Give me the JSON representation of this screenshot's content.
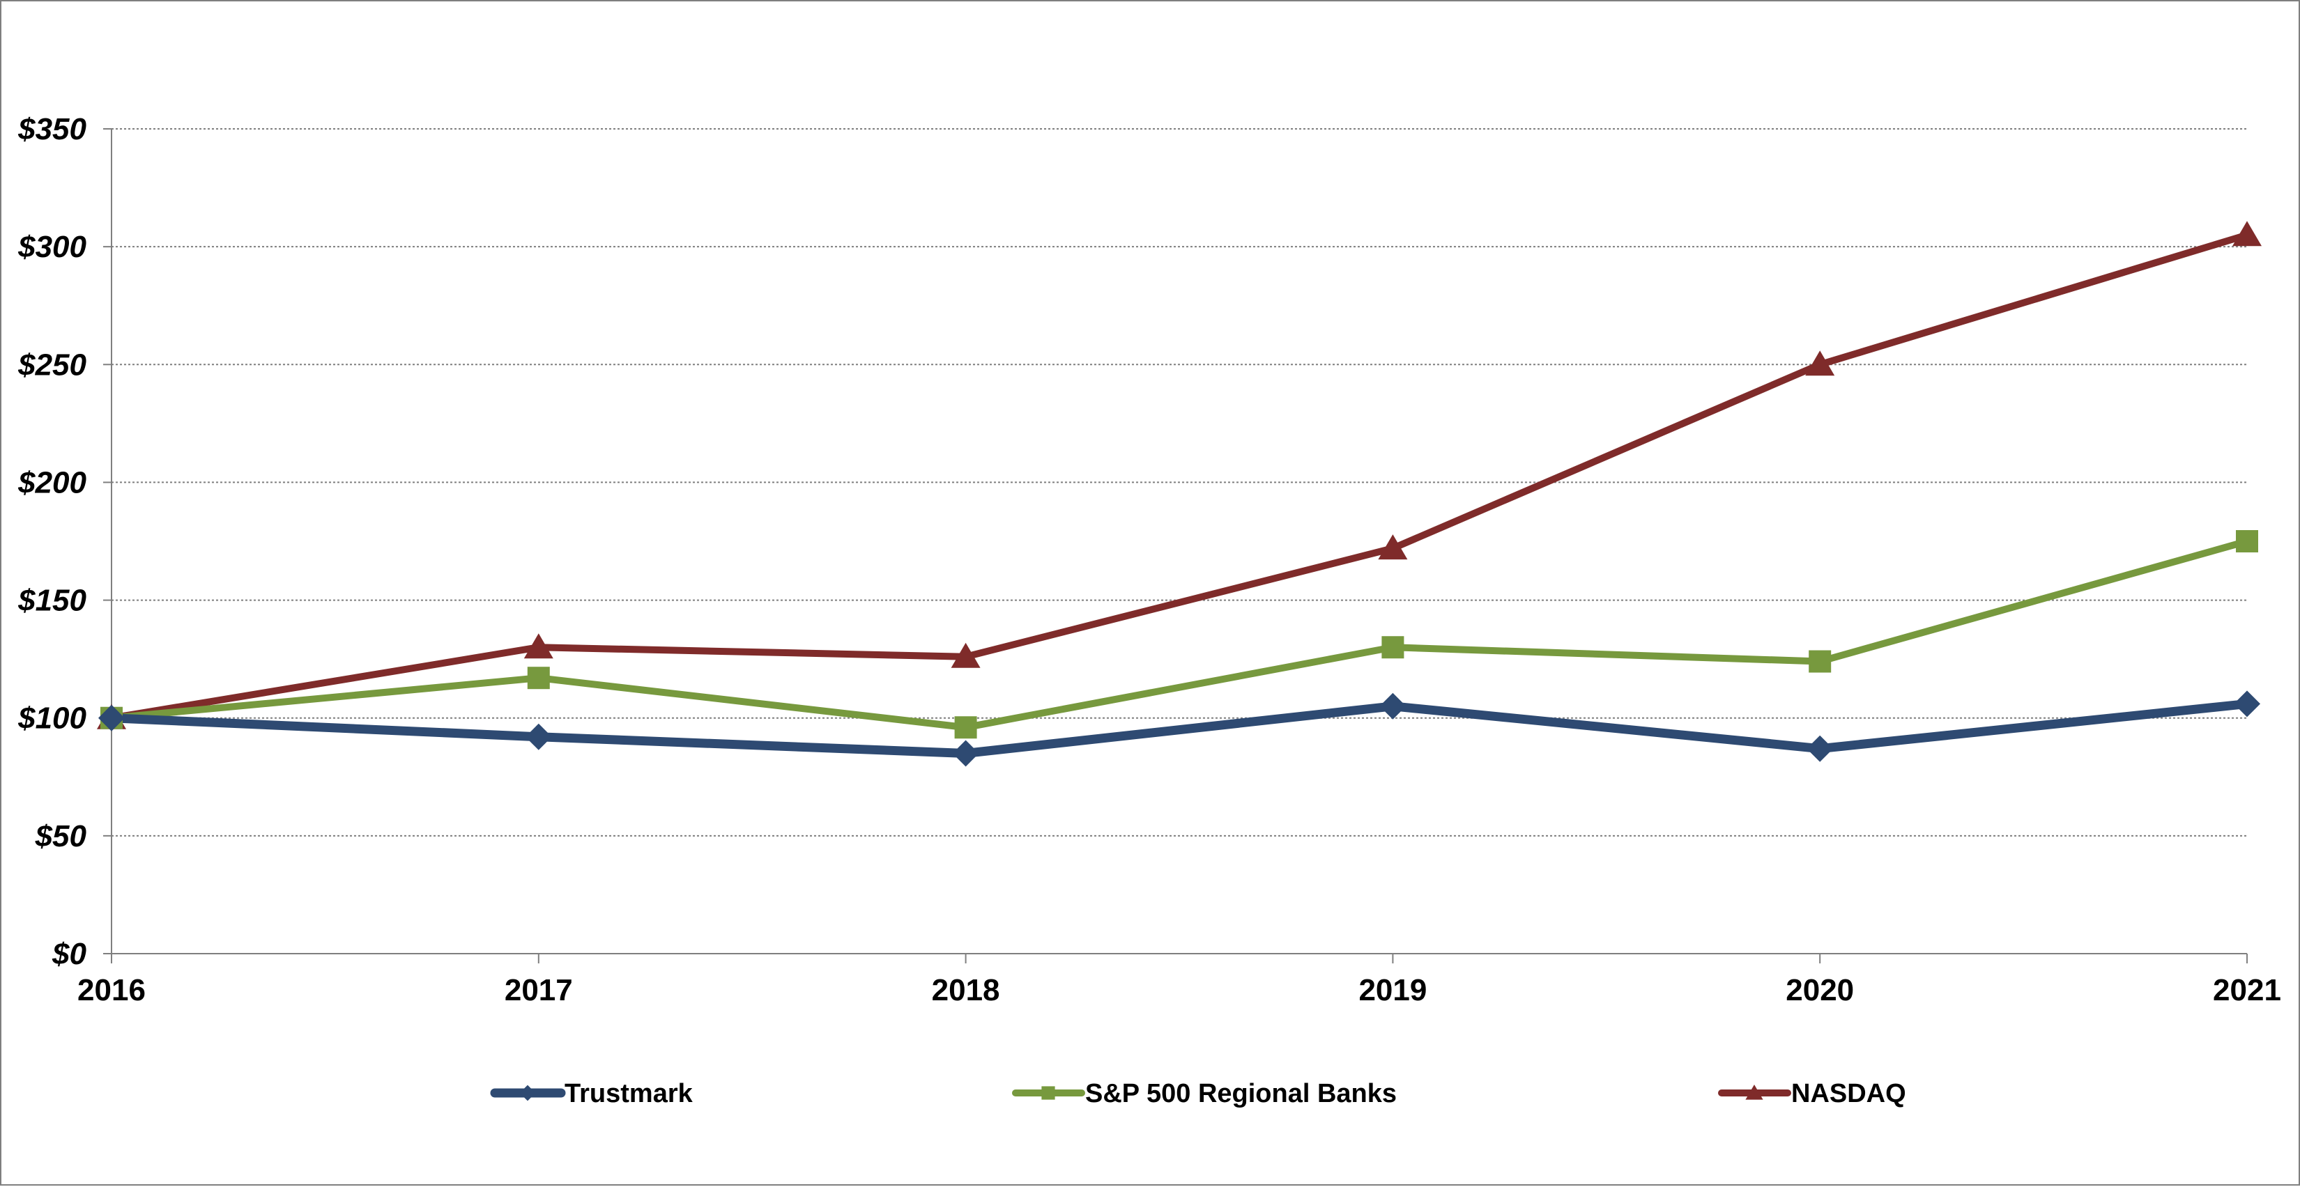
{
  "chart_data": {
    "type": "line",
    "x": [
      "2016",
      "2017",
      "2018",
      "2019",
      "2020",
      "2021"
    ],
    "ylim": [
      0,
      350
    ],
    "yticks": [
      "$0",
      "$50",
      "$100",
      "$150",
      "$200",
      "$250",
      "$300",
      "$350"
    ],
    "ytick_values": [
      0,
      50,
      100,
      150,
      200,
      250,
      300,
      350
    ],
    "grid": true,
    "legend_position": "bottom",
    "series": [
      {
        "name": "Trustmark",
        "values": [
          100,
          92,
          85,
          105,
          87,
          106
        ],
        "color": "#2e4a72",
        "marker": "diamond"
      },
      {
        "name": "S&P 500 Regional Banks",
        "values": [
          100,
          117,
          96,
          130,
          124,
          175
        ],
        "color": "#77993e",
        "marker": "square"
      },
      {
        "name": "NASDAQ",
        "values": [
          100,
          130,
          126,
          172,
          250,
          305
        ],
        "color": "#7f2b2a",
        "marker": "triangle"
      }
    ]
  }
}
